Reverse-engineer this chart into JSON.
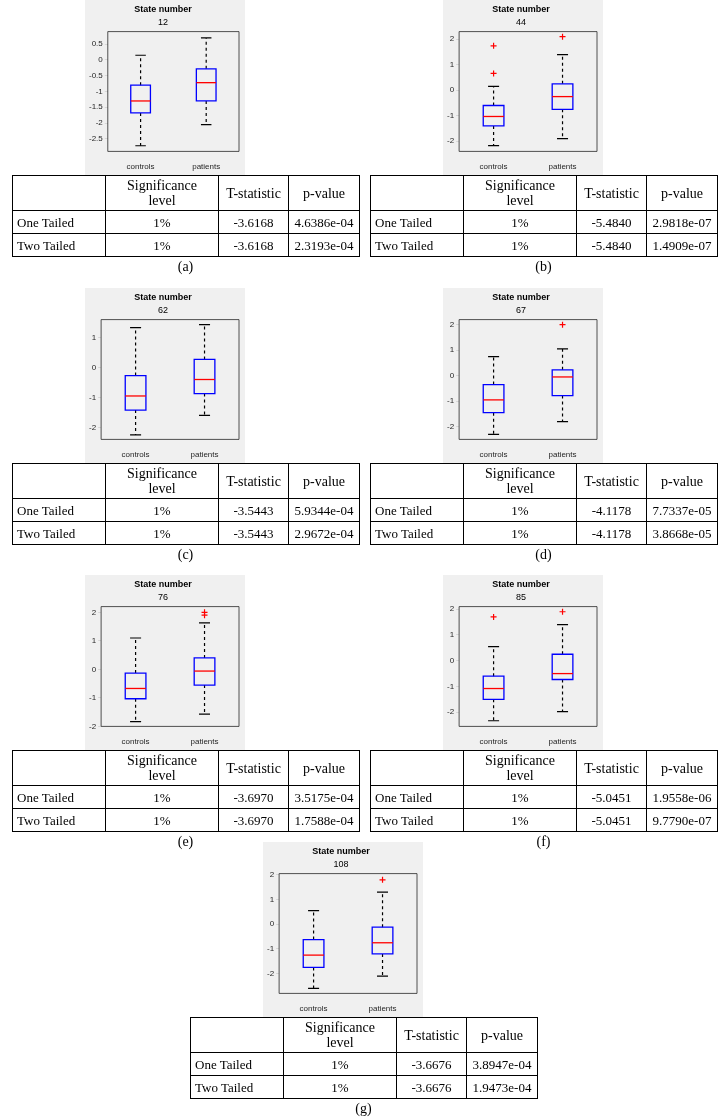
{
  "chart_data": [
    {
      "type": "box",
      "title": "State number",
      "subtitle": "12",
      "categories": [
        "controls",
        "patients"
      ],
      "color": "#0000ff",
      "ylim": [
        -2.9,
        0.9
      ],
      "yticks": [
        -2.5,
        -2,
        -1.5,
        -1,
        -0.5,
        0,
        0.5
      ],
      "boxes": [
        {
          "low": -2.72,
          "q1": -1.68,
          "median": -1.3,
          "q3": -0.8,
          "high": 0.15
        },
        {
          "low": -2.05,
          "q1": -1.3,
          "median": -0.72,
          "q3": -0.28,
          "high": 0.7
        }
      ],
      "annotations": [
        "Significance level",
        "T-statistic",
        "p-value",
        "One Tailed",
        "1%",
        "-3.6168",
        "4.6386e-04",
        "Two Tailed",
        "1%",
        "-3.6168",
        "2.3193e-04",
        "(a)"
      ]
    },
    {
      "type": "box",
      "title": "State number",
      "subtitle": "44",
      "categories": [
        "controls",
        "patients"
      ],
      "color": "#0000ff",
      "ylim": [
        -2.4,
        2.3
      ],
      "yticks": [
        -2,
        -1,
        0,
        1,
        2
      ],
      "boxes": [
        {
          "low": -2.17,
          "q1": -1.4,
          "median": -1.03,
          "q3": -0.6,
          "high": 0.15,
          "outliers": [
            1.74,
            0.66
          ]
        },
        {
          "low": -1.9,
          "q1": -0.75,
          "median": -0.25,
          "q3": 0.25,
          "high": 1.4,
          "outliers": [
            2.1
          ]
        }
      ],
      "annotations": [
        "Significance level",
        "T-statistic",
        "p-value",
        "One Tailed",
        "1%",
        "-5.4840",
        "2.9818e-07",
        "Two Tailed",
        "1%",
        "-5.4840",
        "1.4909e-07",
        "(b)"
      ]
    },
    {
      "type": "box",
      "title": "State number",
      "subtitle": "62",
      "categories": [
        "controls",
        "patients"
      ],
      "color": "#0000ff",
      "ylim": [
        -2.4,
        1.6
      ],
      "yticks": [
        -2,
        -1,
        0,
        1
      ],
      "boxes": [
        {
          "low": -2.25,
          "q1": -1.42,
          "median": -0.95,
          "q3": -0.27,
          "high": 1.33
        },
        {
          "low": -1.6,
          "q1": -0.87,
          "median": -0.4,
          "q3": 0.27,
          "high": 1.43
        }
      ],
      "annotations": [
        "Significance level",
        "T-statistic",
        "p-value",
        "One Tailed",
        "1%",
        "-3.5443",
        "5.9344e-04",
        "Two Tailed",
        "1%",
        "-3.5443",
        "2.9672e-04",
        "(c)"
      ]
    },
    {
      "type": "box",
      "title": "State number",
      "subtitle": "67",
      "categories": [
        "controls",
        "patients"
      ],
      "color": "#0000ff",
      "ylim": [
        -2.5,
        2.2
      ],
      "yticks": [
        -2,
        -1,
        0,
        1,
        2
      ],
      "boxes": [
        {
          "low": -2.3,
          "q1": -1.45,
          "median": -0.95,
          "q3": -0.35,
          "high": 0.75
        },
        {
          "low": -1.8,
          "q1": -0.78,
          "median": -0.05,
          "q3": 0.23,
          "high": 1.05,
          "outliers": [
            2.0
          ]
        }
      ],
      "annotations": [
        "Significance level",
        "T-statistic",
        "p-value",
        "One Tailed",
        "1%",
        "-4.1178",
        "7.7337e-05",
        "Two Tailed",
        "1%",
        "-4.1178",
        "3.8668e-05",
        "(d)"
      ]
    },
    {
      "type": "box",
      "title": "State number",
      "subtitle": "76",
      "categories": [
        "controls",
        "patients"
      ],
      "color": "#0000ff",
      "ylim": [
        -2,
        2.2
      ],
      "yticks": [
        -2,
        -1,
        0,
        1,
        2
      ],
      "boxes": [
        {
          "low": -1.83,
          "q1": -1.03,
          "median": -0.67,
          "q3": -0.13,
          "high": 1.1
        },
        {
          "low": -1.57,
          "q1": -0.55,
          "median": -0.06,
          "q3": 0.4,
          "high": 1.63,
          "outliers": [
            2.0,
            1.9
          ]
        }
      ],
      "annotations": [
        "Significance level",
        "T-statistic",
        "p-value",
        "One Tailed",
        "1%",
        "-3.6970",
        "3.5175e-04",
        "Two Tailed",
        "1%",
        "-3.6970",
        "1.7588e-04",
        "(e)"
      ]
    },
    {
      "type": "box",
      "title": "State number",
      "subtitle": "85",
      "categories": [
        "controls",
        "patients"
      ],
      "color": "#0000ff",
      "ylim": [
        -2.55,
        2.1
      ],
      "yticks": [
        -2,
        -1,
        0,
        1,
        2
      ],
      "boxes": [
        {
          "low": -2.33,
          "q1": -1.5,
          "median": -1.08,
          "q3": -0.6,
          "high": 0.55,
          "outliers": [
            1.7
          ]
        },
        {
          "low": -1.98,
          "q1": -0.73,
          "median": -0.5,
          "q3": 0.25,
          "high": 1.4,
          "outliers": [
            1.9
          ]
        }
      ],
      "annotations": [
        "Significance level",
        "T-statistic",
        "p-value",
        "One Tailed",
        "1%",
        "-5.0451",
        "1.9558e-06",
        "Two Tailed",
        "1%",
        "-5.0451",
        "9.7790e-07",
        "(f)"
      ]
    },
    {
      "type": "box",
      "title": "State number",
      "subtitle": "108",
      "categories": [
        "controls",
        "patients"
      ],
      "color": "#0000ff",
      "ylim": [
        -2.8,
        2.05
      ],
      "yticks": [
        -2,
        -1,
        0,
        1,
        2
      ],
      "boxes": [
        {
          "low": -2.6,
          "q1": -1.75,
          "median": -1.25,
          "q3": -0.62,
          "high": 0.55
        },
        {
          "low": -2.1,
          "q1": -1.2,
          "median": -0.75,
          "q3": -0.12,
          "high": 1.3,
          "outliers": [
            1.8
          ]
        }
      ],
      "annotations": [
        "Significance level",
        "T-statistic",
        "p-value",
        "One Tailed",
        "1%",
        "-3.6676",
        "3.8947e-04",
        "Two Tailed",
        "1%",
        "-3.6676",
        "1.9473e-04",
        "(g)"
      ]
    }
  ]
}
